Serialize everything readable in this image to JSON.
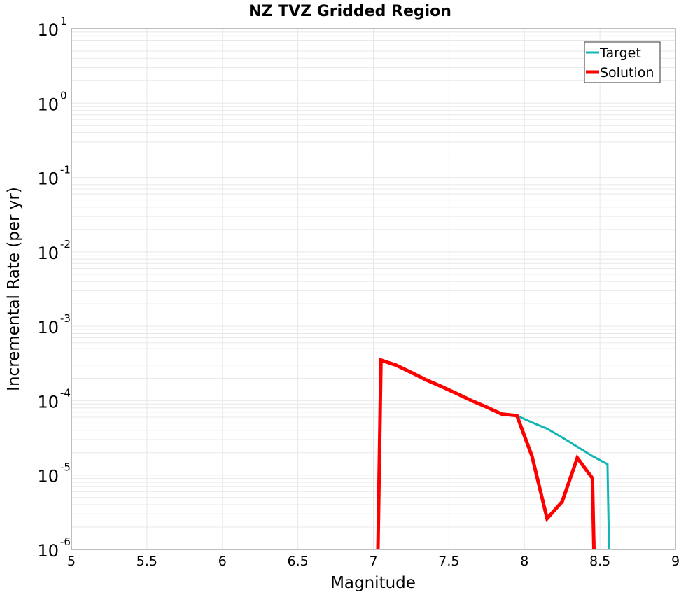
{
  "chart_data": {
    "type": "line",
    "title": "NZ TVZ Gridded Region",
    "xlabel": "Magnitude",
    "ylabel": "Incremental Rate (per yr)",
    "xlim": [
      5,
      9
    ],
    "ylim": [
      1e-06,
      10
    ],
    "yscale": "log",
    "xticks": [
      "5",
      "5.5",
      "6",
      "6.5",
      "7",
      "7.5",
      "8",
      "8.5",
      "9"
    ],
    "yticks": [
      {
        "base": "10",
        "exp": "1"
      },
      {
        "base": "10",
        "exp": "0"
      },
      {
        "base": "10",
        "exp": "-1"
      },
      {
        "base": "10",
        "exp": "-2"
      },
      {
        "base": "10",
        "exp": "-3"
      },
      {
        "base": "10",
        "exp": "-4"
      },
      {
        "base": "10",
        "exp": "-5"
      },
      {
        "base": "10",
        "exp": "-6"
      }
    ],
    "grid": true,
    "legend_position": "upper right",
    "series": [
      {
        "name": "Target",
        "color": "#13b5b5",
        "width": 3,
        "x": [
          7.03,
          7.05,
          7.15,
          7.25,
          7.35,
          7.45,
          7.55,
          7.65,
          7.75,
          7.85,
          7.95,
          8.05,
          8.15,
          8.25,
          8.35,
          8.45,
          8.55,
          8.56
        ],
        "y": [
          1e-06,
          0.00035,
          0.0003,
          0.00024,
          0.00019,
          0.000155,
          0.000125,
          0.0001,
          8.2e-05,
          6.6e-05,
          6.3e-05,
          5.1e-05,
          4.2e-05,
          3.2e-05,
          2.4e-05,
          1.8e-05,
          1.4e-05,
          1e-06
        ]
      },
      {
        "name": "Solution",
        "color": "#ff0000",
        "width": 5,
        "x": [
          7.03,
          7.05,
          7.15,
          7.25,
          7.35,
          7.45,
          7.55,
          7.65,
          7.75,
          7.85,
          7.95,
          8.05,
          8.15,
          8.25,
          8.35,
          8.45,
          8.46
        ],
        "y": [
          1e-06,
          0.00035,
          0.0003,
          0.00024,
          0.00019,
          0.000155,
          0.000125,
          0.0001,
          8.2e-05,
          6.6e-05,
          6.3e-05,
          1.8e-05,
          2.6e-06,
          4.4e-06,
          1.7e-05,
          9.1e-06,
          1e-06
        ]
      }
    ]
  },
  "colors": {
    "grid": "#e8e8e8",
    "axis": "#a8a8a8",
    "legend_border": "#555555"
  }
}
